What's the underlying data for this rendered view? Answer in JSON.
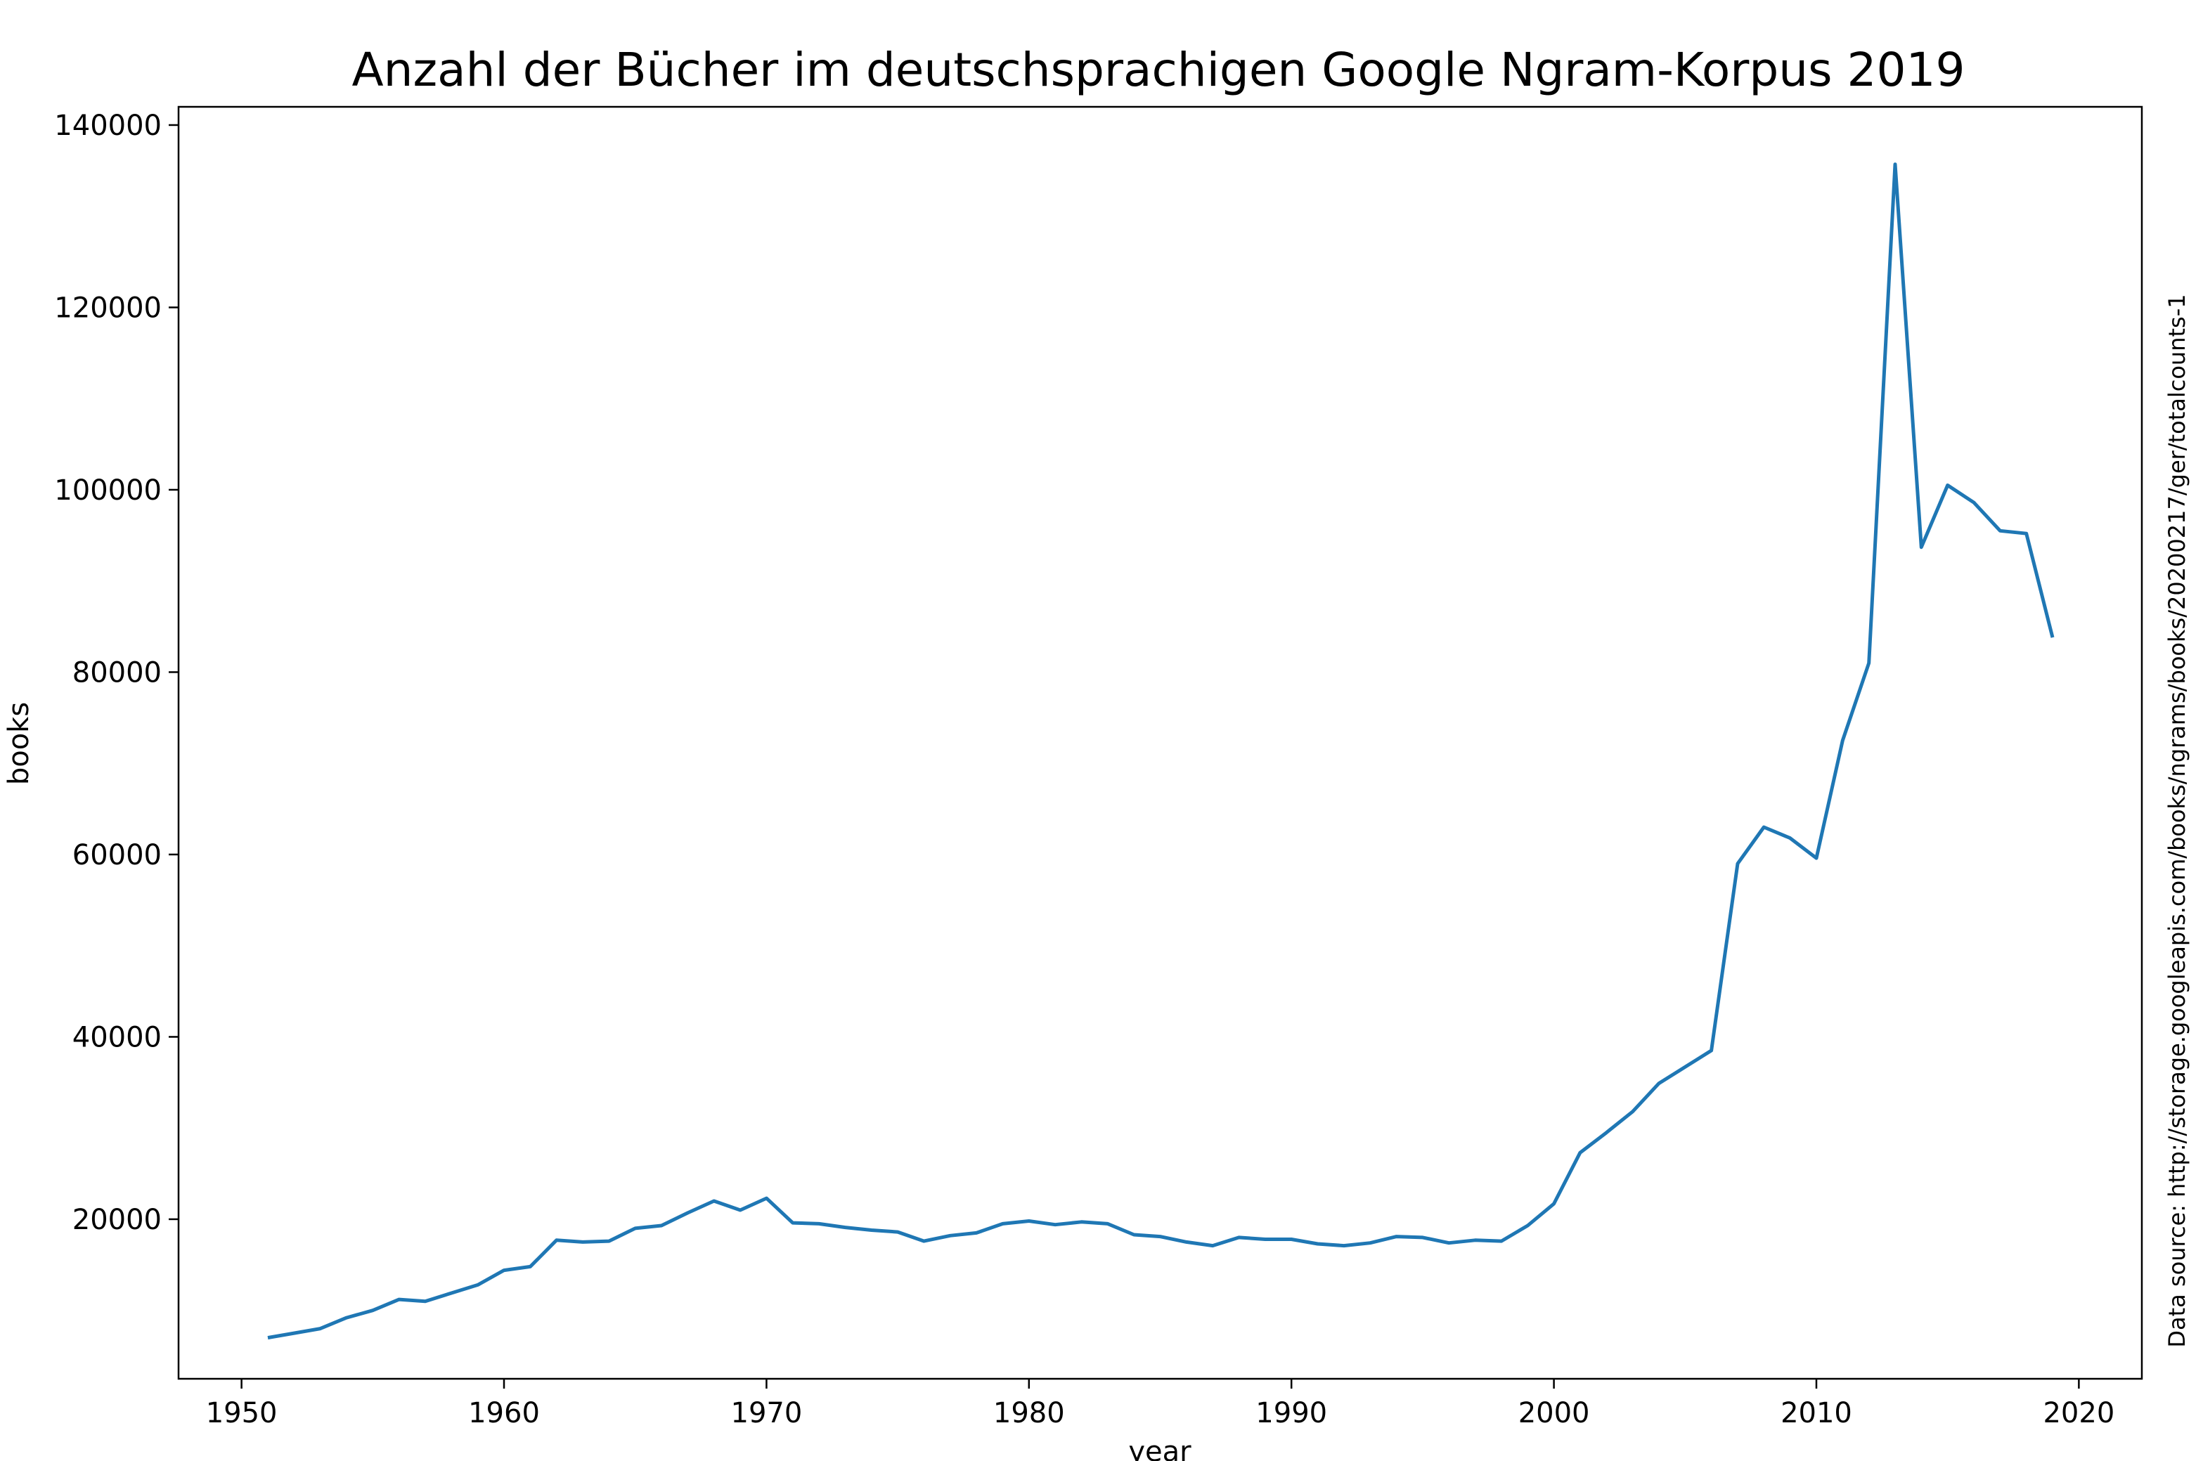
{
  "chart_data": {
    "type": "line",
    "title": "Anzahl der Bücher im deutschsprachigen Google Ngram-Korpus 2019",
    "xlabel": "year",
    "ylabel": "books",
    "note": "Data source: http://storage.googleapis.com/books/ngrams/books/20200217/ger/totalcounts-1",
    "xlim": [
      1947.6,
      2022.4
    ],
    "ylim": [
      2500,
      142000
    ],
    "xticks": [
      1950,
      1960,
      1970,
      1980,
      1990,
      2000,
      2010,
      2020
    ],
    "yticks": [
      20000,
      40000,
      60000,
      80000,
      100000,
      120000,
      140000
    ],
    "grid": false,
    "line_color": "#1f77b4",
    "x": [
      1951,
      1952,
      1953,
      1954,
      1955,
      1956,
      1957,
      1958,
      1959,
      1960,
      1961,
      1962,
      1963,
      1964,
      1965,
      1966,
      1967,
      1968,
      1969,
      1970,
      1971,
      1972,
      1973,
      1974,
      1975,
      1976,
      1977,
      1978,
      1979,
      1980,
      1981,
      1982,
      1983,
      1984,
      1985,
      1986,
      1987,
      1988,
      1989,
      1990,
      1991,
      1992,
      1993,
      1994,
      1995,
      1996,
      1997,
      1998,
      1999,
      2000,
      2001,
      2002,
      2003,
      2004,
      2005,
      2006,
      2007,
      2008,
      2009,
      2010,
      2011,
      2012,
      2013,
      2014,
      2015,
      2016,
      2017,
      2018,
      2019
    ],
    "y": [
      7000,
      7500,
      8000,
      9200,
      10000,
      11200,
      11000,
      11900,
      12800,
      14400,
      14800,
      17700,
      17500,
      17600,
      19000,
      19300,
      20700,
      22000,
      21000,
      22300,
      19600,
      19500,
      19100,
      18800,
      18600,
      17600,
      18200,
      18500,
      19500,
      19800,
      19400,
      19700,
      19500,
      18300,
      18100,
      17500,
      17100,
      18000,
      17800,
      17800,
      17300,
      17100,
      17400,
      18100,
      18000,
      17400,
      17700,
      17600,
      19300,
      21700,
      27300,
      29500,
      31800,
      34900,
      36700,
      38500,
      59000,
      63000,
      61800,
      59600,
      72500,
      81000,
      135700,
      93700,
      100500,
      98600,
      95500,
      95200,
      83800
    ]
  }
}
